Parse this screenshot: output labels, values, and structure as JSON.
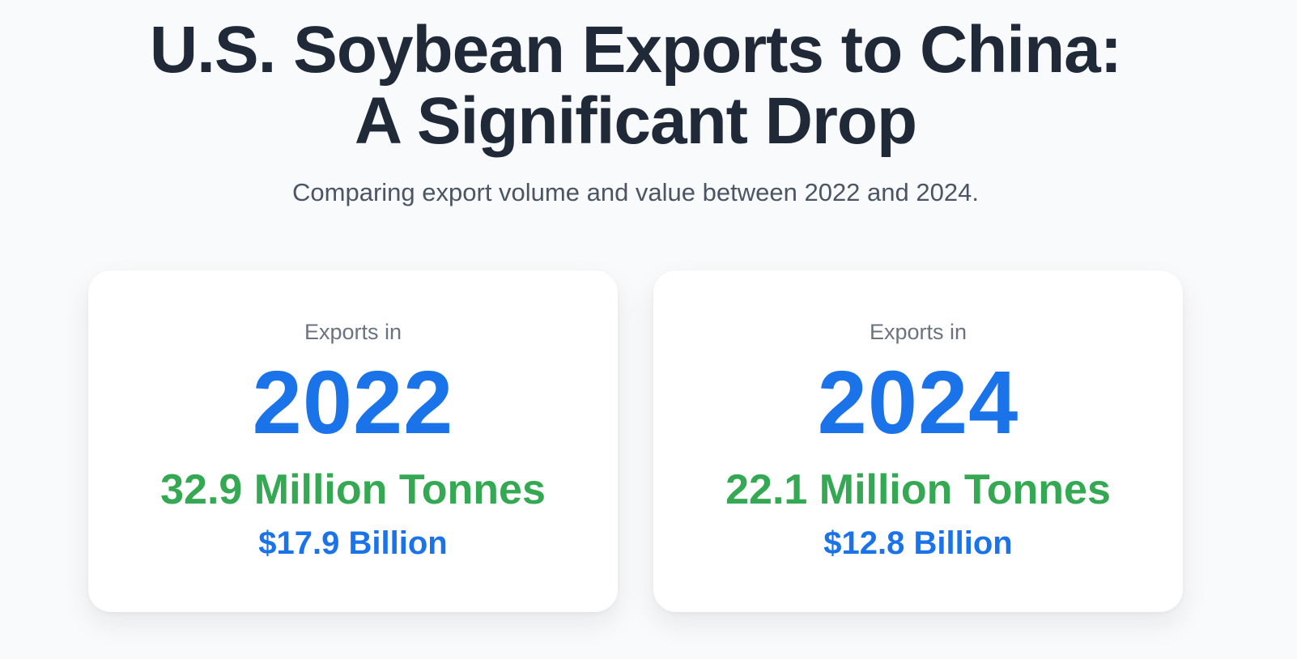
{
  "header": {
    "title_line1": "U.S. Soybean Exports to China:",
    "title_line2": "A Significant Drop",
    "subtitle": "Comparing export volume and value between 2022 and 2024."
  },
  "cards": [
    {
      "label": "Exports in",
      "year": "2022",
      "volume": "32.9 Million Tonnes",
      "value": "$17.9 Billion"
    },
    {
      "label": "Exports in",
      "year": "2024",
      "volume": "22.1 Million Tonnes",
      "value": "$12.8 Billion"
    }
  ],
  "colors": {
    "background": "#f9fafb",
    "title": "#1f2937",
    "subtitle": "#4b5563",
    "label": "#6b7280",
    "accent_blue": "#1a73e8",
    "accent_green": "#34a853",
    "card": "#ffffff"
  }
}
